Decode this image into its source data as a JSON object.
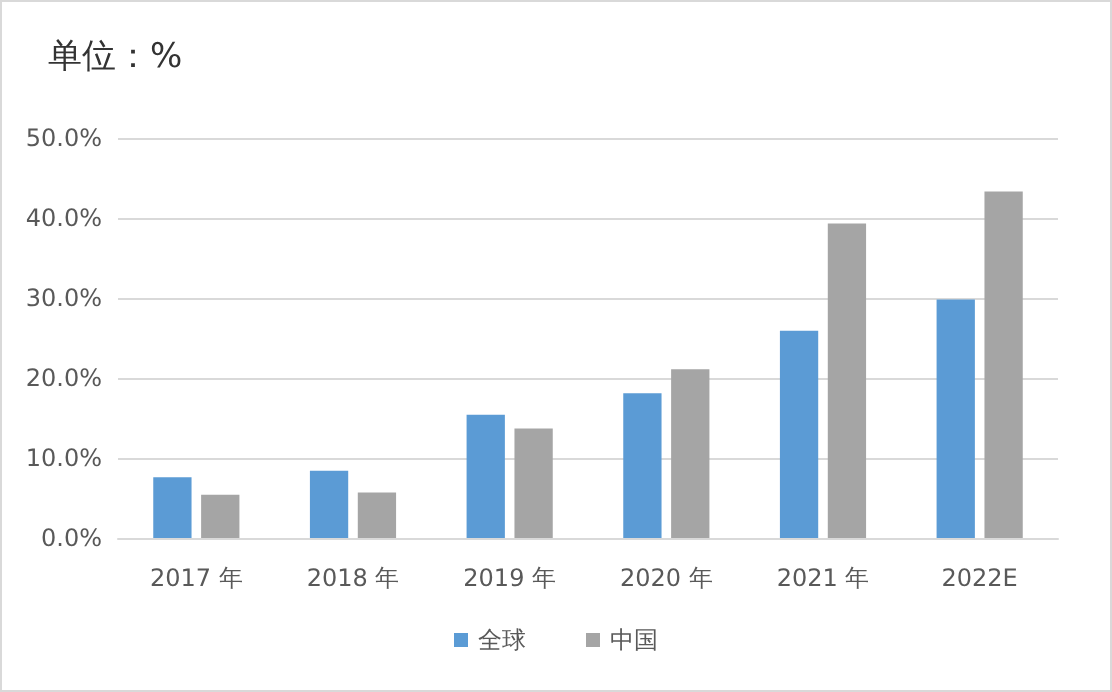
{
  "chart_data": {
    "type": "bar",
    "title": "单位：%",
    "categories": [
      "2017 年",
      "2018 年",
      "2019 年",
      "2020 年",
      "2021 年",
      "2022E"
    ],
    "series": [
      {
        "name": "全球",
        "color": "#5b9bd5",
        "values": [
          7.6,
          8.4,
          15.4,
          18.1,
          25.9,
          29.8
        ]
      },
      {
        "name": "中国",
        "color": "#a5a5a5",
        "values": [
          5.4,
          5.7,
          13.7,
          21.1,
          39.3,
          43.3
        ]
      }
    ],
    "ylim": [
      0,
      50
    ],
    "yticks": [
      {
        "value": 0,
        "label": "0.0%"
      },
      {
        "value": 10,
        "label": "10.0%"
      },
      {
        "value": 20,
        "label": "20.0%"
      },
      {
        "value": 30,
        "label": "30.0%"
      },
      {
        "value": 40,
        "label": "40.0%"
      },
      {
        "value": 50,
        "label": "50.0%"
      }
    ],
    "grid": "y",
    "legend": "bottom"
  }
}
